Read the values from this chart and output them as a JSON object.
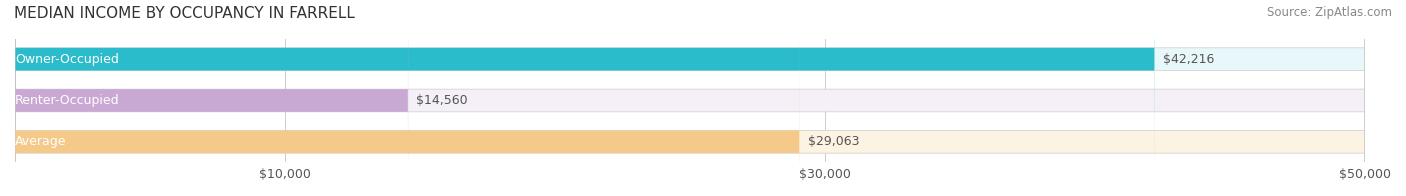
{
  "title": "MEDIAN INCOME BY OCCUPANCY IN FARRELL",
  "source": "Source: ZipAtlas.com",
  "categories": [
    "Owner-Occupied",
    "Renter-Occupied",
    "Average"
  ],
  "values": [
    42216,
    14560,
    29063
  ],
  "bar_colors": [
    "#2bbccc",
    "#c9a8d4",
    "#f5c98a"
  ],
  "bar_bg_colors": [
    "#e8f8fa",
    "#f5eff8",
    "#fdf3e3"
  ],
  "value_labels": [
    "$42,216",
    "$14,560",
    "$29,063"
  ],
  "xlim": [
    0,
    50000
  ],
  "xticks": [
    10000,
    30000,
    50000
  ],
  "xtick_labels": [
    "$10,000",
    "$30,000",
    "$50,000"
  ],
  "label_fontsize": 9,
  "title_fontsize": 11,
  "source_fontsize": 8.5,
  "background_color": "#ffffff",
  "bar_height": 0.55,
  "label_color": "#555555",
  "value_color_inside": "#ffffff",
  "value_color_outside": "#555555"
}
